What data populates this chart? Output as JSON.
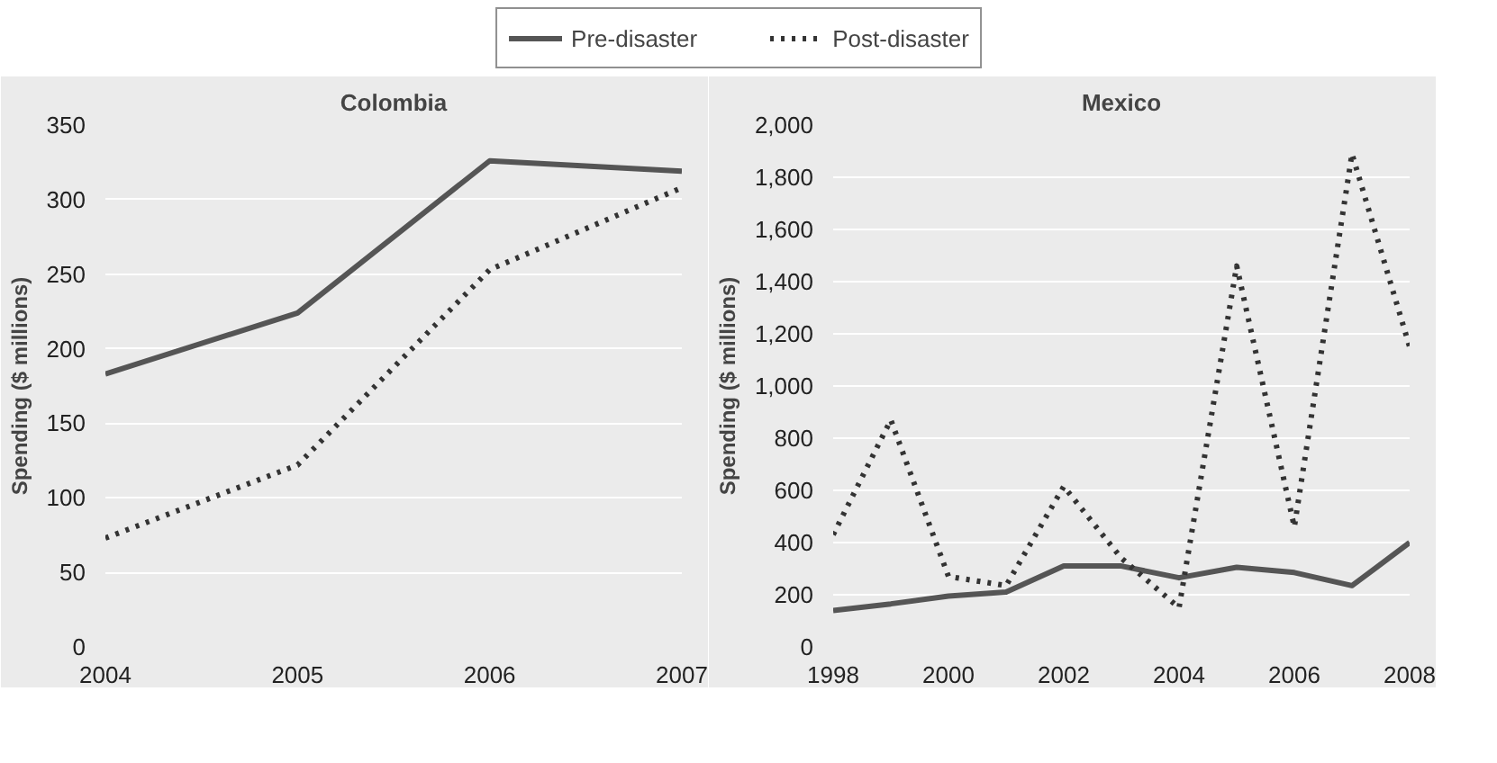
{
  "chart_data": [
    {
      "type": "line",
      "title": "Colombia",
      "ylabel": "Spending ($ millions)",
      "x": [
        2004,
        2005,
        2006,
        2007
      ],
      "xlim": [
        2004,
        2007
      ],
      "xticks": [
        2004,
        2005,
        2006,
        2007
      ],
      "ylim": [
        0,
        350
      ],
      "yticks": [
        0,
        50,
        100,
        150,
        200,
        250,
        300,
        350
      ],
      "grid": "y",
      "legend": "top",
      "series": [
        {
          "name": "Pre-disaster",
          "color": "#555555",
          "line_style": "solid",
          "values": [
            183,
            224,
            326,
            319
          ]
        },
        {
          "name": "Post-disaster",
          "color": "#333333",
          "line_style": "dotted",
          "values": [
            73,
            122,
            253,
            308
          ]
        }
      ]
    },
    {
      "type": "line",
      "title": "Mexico",
      "ylabel": "Spending ($ millions)",
      "x": [
        1998,
        1999,
        2000,
        2001,
        2002,
        2003,
        2004,
        2005,
        2006,
        2007,
        2008
      ],
      "xlim": [
        1998,
        2008
      ],
      "xticks": [
        1998,
        2000,
        2002,
        2004,
        2006,
        2008
      ],
      "ylim": [
        0,
        2000
      ],
      "yticks": [
        0,
        {
          "value": 200,
          "label": "200"
        },
        {
          "value": 400,
          "label": "400"
        },
        {
          "value": 600,
          "label": "600"
        },
        {
          "value": 800,
          "label": "800"
        },
        {
          "value": 1000,
          "label": "1,000"
        },
        {
          "value": 1200,
          "label": "1,200"
        },
        {
          "value": 1400,
          "label": "1,400"
        },
        {
          "value": 1600,
          "label": "1,600"
        },
        {
          "value": 1800,
          "label": "1,800"
        },
        {
          "value": 2000,
          "label": "2,000"
        }
      ],
      "grid": "y",
      "series": [
        {
          "color": "#555555",
          "line_style": "solid",
          "values": [
            140,
            165,
            195,
            210,
            310,
            310,
            265,
            305,
            285,
            235,
            400
          ]
        },
        {
          "color": "#333333",
          "line_style": "dotted",
          "values": [
            430,
            870,
            270,
            235,
            615,
            340,
            150,
            1460,
            460,
            1890,
            1150
          ]
        }
      ]
    }
  ]
}
